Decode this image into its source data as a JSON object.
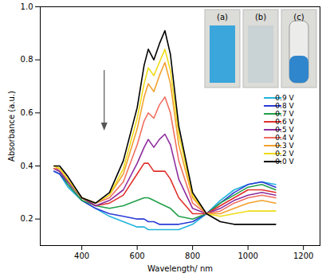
{
  "chart_data": {
    "type": "line",
    "x_label": "Wavelength/ nm",
    "y_label": "Absorbance (a.u.)",
    "x": [
      300,
      320,
      350,
      400,
      450,
      500,
      550,
      600,
      625,
      640,
      660,
      680,
      700,
      720,
      750,
      800,
      850,
      900,
      950,
      1000,
      1050,
      1100
    ],
    "series": [
      {
        "name": "0.9 V",
        "color": "#22b4dc",
        "values": [
          0.38,
          0.37,
          0.32,
          0.27,
          0.24,
          0.21,
          0.19,
          0.17,
          0.17,
          0.16,
          0.16,
          0.16,
          0.16,
          0.16,
          0.16,
          0.18,
          0.22,
          0.27,
          0.31,
          0.33,
          0.34,
          0.33
        ]
      },
      {
        "name": "0.8 V",
        "color": "#2a3bd6",
        "values": [
          0.38,
          0.37,
          0.33,
          0.27,
          0.24,
          0.22,
          0.21,
          0.2,
          0.2,
          0.19,
          0.19,
          0.18,
          0.18,
          0.18,
          0.18,
          0.19,
          0.22,
          0.26,
          0.3,
          0.33,
          0.34,
          0.32
        ]
      },
      {
        "name": "0.7 V",
        "color": "#23a04a",
        "values": [
          0.39,
          0.38,
          0.33,
          0.27,
          0.25,
          0.24,
          0.25,
          0.27,
          0.28,
          0.28,
          0.27,
          0.26,
          0.25,
          0.24,
          0.21,
          0.2,
          0.22,
          0.26,
          0.29,
          0.32,
          0.33,
          0.31
        ]
      },
      {
        "name": "0.6 V",
        "color": "#e0302b",
        "values": [
          0.39,
          0.38,
          0.34,
          0.28,
          0.25,
          0.26,
          0.29,
          0.37,
          0.41,
          0.41,
          0.38,
          0.38,
          0.38,
          0.35,
          0.28,
          0.22,
          0.22,
          0.25,
          0.28,
          0.31,
          0.31,
          0.3
        ]
      },
      {
        "name": "0.5 V",
        "color": "#8e2d9e",
        "values": [
          0.39,
          0.38,
          0.34,
          0.28,
          0.25,
          0.27,
          0.31,
          0.41,
          0.47,
          0.5,
          0.47,
          0.5,
          0.52,
          0.48,
          0.35,
          0.24,
          0.22,
          0.24,
          0.27,
          0.29,
          0.3,
          0.29
        ]
      },
      {
        "name": "0.4 V",
        "color": "#f07060",
        "values": [
          0.39,
          0.39,
          0.35,
          0.28,
          0.26,
          0.28,
          0.34,
          0.48,
          0.57,
          0.6,
          0.58,
          0.63,
          0.66,
          0.6,
          0.42,
          0.26,
          0.22,
          0.23,
          0.26,
          0.28,
          0.29,
          0.28
        ]
      },
      {
        "name": "0.3 V",
        "color": "#f3a12e",
        "values": [
          0.4,
          0.39,
          0.35,
          0.28,
          0.26,
          0.29,
          0.37,
          0.54,
          0.66,
          0.71,
          0.68,
          0.74,
          0.79,
          0.71,
          0.48,
          0.28,
          0.22,
          0.22,
          0.24,
          0.26,
          0.27,
          0.26
        ]
      },
      {
        "name": "0.2 V",
        "color": "#eedc1a",
        "values": [
          0.4,
          0.39,
          0.35,
          0.28,
          0.26,
          0.29,
          0.39,
          0.58,
          0.71,
          0.77,
          0.74,
          0.79,
          0.84,
          0.76,
          0.52,
          0.29,
          0.22,
          0.21,
          0.22,
          0.23,
          0.23,
          0.23
        ]
      },
      {
        "name": "0.0 V",
        "color": "#000000",
        "values": [
          0.4,
          0.4,
          0.36,
          0.28,
          0.26,
          0.3,
          0.42,
          0.62,
          0.78,
          0.84,
          0.8,
          0.86,
          0.91,
          0.82,
          0.55,
          0.3,
          0.22,
          0.19,
          0.18,
          0.18,
          0.18,
          0.18
        ]
      }
    ],
    "xlim": [
      250,
      1260
    ],
    "ylim": [
      0.1,
      1.0
    ],
    "xticks": [
      400,
      600,
      800,
      1000,
      1200
    ],
    "yticks": [
      0.2,
      0.4,
      0.6,
      0.8,
      {
        "value": 1.0,
        "label": "1.0"
      }
    ],
    "legend": "right",
    "insets": [
      "(a)",
      "(b)",
      "(c)"
    ]
  }
}
